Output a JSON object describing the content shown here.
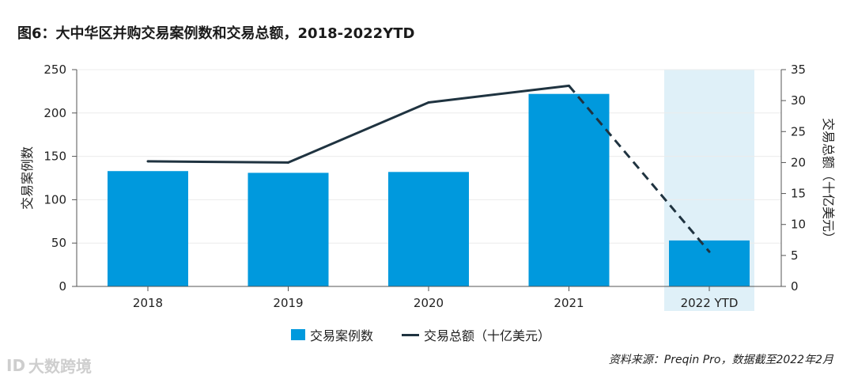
{
  "title": "图6：大中华区并购交易案例数和交易总额，2018-2022YTD",
  "legend": {
    "bar_label": "交易案例数",
    "line_label": "交易总额（十亿美元）"
  },
  "source": "资料来源：Preqin Pro，数据截至2022年2月",
  "watermark": {
    "text": "大数跨境",
    "icon": "ID"
  },
  "colors": {
    "bar": "#0099dd",
    "line": "#1f3340",
    "highlight": "#dff0f8",
    "axis": "#555555",
    "grid": "#ececec"
  },
  "chart_data": {
    "type": "bar",
    "categories": [
      "2018",
      "2019",
      "2020",
      "2021",
      "2022 YTD"
    ],
    "highlight_category": "2022 YTD",
    "series": [
      {
        "name": "交易案例数",
        "type": "bar",
        "axis": "left",
        "values": [
          133,
          131,
          132,
          222,
          53
        ]
      },
      {
        "name": "交易总额（十亿美元）",
        "type": "line",
        "axis": "right",
        "values": [
          20.2,
          20.0,
          29.7,
          32.4,
          5.6
        ],
        "dashed_last_segment": true
      }
    ],
    "ylabel_left": "交易案例数",
    "ylabel_right": "交易总额（十亿美元）",
    "ylim_left": [
      0,
      250
    ],
    "yticks_left": [
      0,
      50,
      100,
      150,
      200,
      250
    ],
    "ylim_right": [
      0,
      35
    ],
    "yticks_right": [
      0,
      5,
      10,
      15,
      20,
      25,
      30,
      35
    ],
    "grid": true
  }
}
